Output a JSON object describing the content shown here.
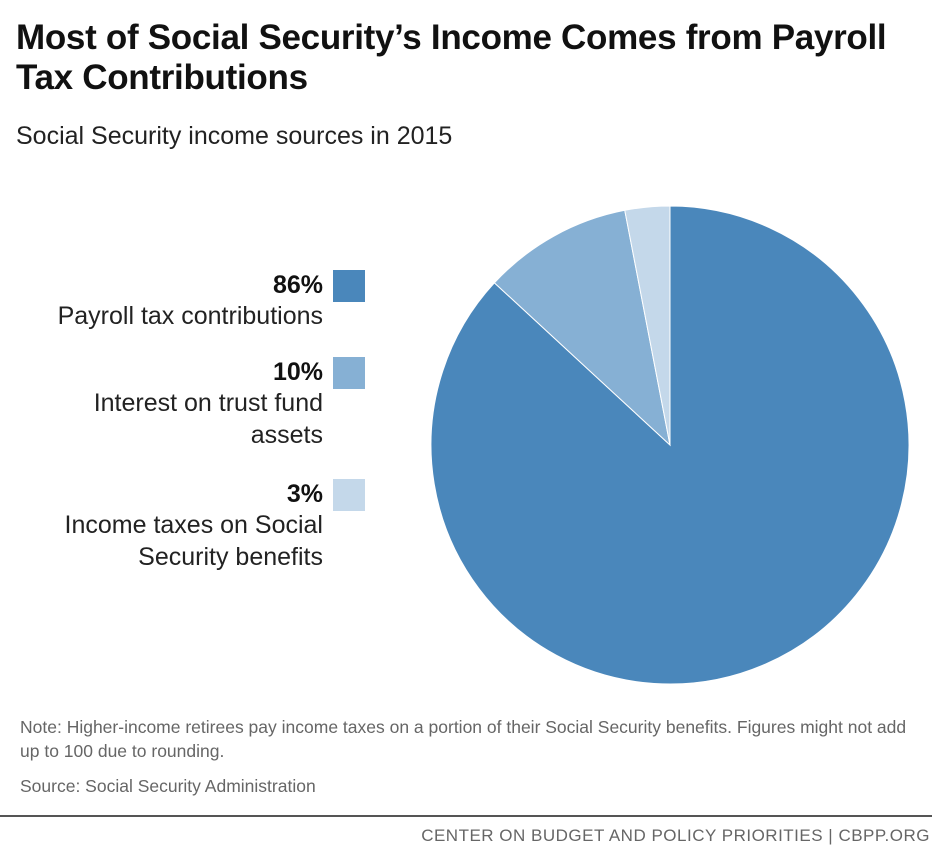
{
  "title": "Most of Social Security’s Income Comes from Payroll Tax Contributions",
  "subtitle": "Social Security income sources in 2015",
  "legend": [
    {
      "pct": "86%",
      "label": "Payroll tax contributions",
      "color": "#4a87bb"
    },
    {
      "pct": "10%",
      "label": "Interest on trust fund assets",
      "color": "#86b0d4"
    },
    {
      "pct": "3%",
      "label": "Income taxes on Social Security benefits",
      "color": "#c4d8ea"
    }
  ],
  "chart_data": {
    "type": "pie",
    "title": "Most of Social Security’s Income Comes from Payroll Tax Contributions",
    "subtitle": "Social Security income sources in 2015",
    "slices": [
      {
        "label": "Payroll tax contributions",
        "value": 86,
        "color": "#4a87bb"
      },
      {
        "label": "Interest on trust fund assets",
        "value": 10,
        "color": "#86b0d4"
      },
      {
        "label": "Income taxes on Social Security benefits",
        "value": 3,
        "color": "#c4d8ea"
      }
    ],
    "legend_position": "left"
  },
  "note": "Note: Higher-income retirees pay income taxes on a portion of their Social Security benefits. Figures might not add up to 100 due to rounding.",
  "source": "Source: Social Security Administration",
  "footer": "CENTER ON BUDGET AND POLICY PRIORITIES | CBPP.ORG"
}
